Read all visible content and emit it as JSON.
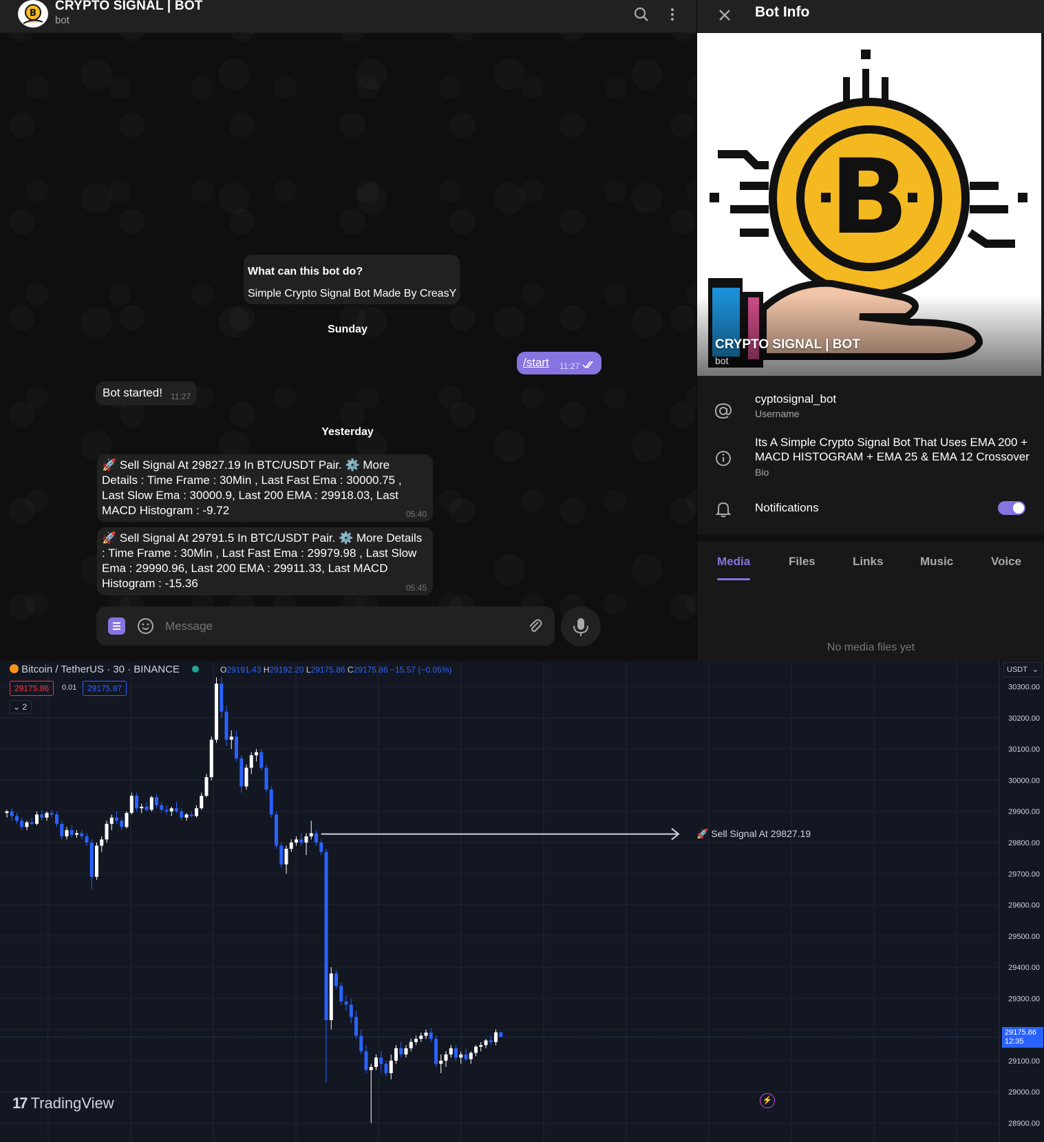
{
  "telegram": {
    "chat_header": {
      "title": "CRYPTO SIGNAL | BOT",
      "subtitle": "bot"
    },
    "messages": {
      "intro_title": "What can this bot do?",
      "intro_text": "Simple Crypto Signal Bot Made By CreasY",
      "date_1": "Sunday",
      "start_text": "/start",
      "start_time": "11:27",
      "bot_started": "Bot started!",
      "bot_started_time": "11:27",
      "date_2": "Yesterday",
      "signal_1": "🚀 Sell Signal At 29827.19 In BTC/USDT Pair. ⚙️ More Details : Time Frame : 30Min , Last Fast Ema : 30000.75 , Last Slow Ema : 30000.9, Last 200 EMA : 29918.03, Last MACD Histogram : -9.72",
      "signal_1_time": "05:40",
      "signal_2": "🚀 Sell Signal At 29791.5 In BTC/USDT Pair. ⚙️ More Details : Time Frame : 30Min , Last Fast Ema : 29979.98 , Last Slow Ema : 29990.96, Last 200 EMA : 29911.33, Last MACD Histogram : -15.36",
      "signal_2_time": "05:45"
    },
    "composer": {
      "placeholder": "Message"
    },
    "side_panel": {
      "title": "Bot Info",
      "photo_name": "CRYPTO SIGNAL | BOT",
      "photo_sub": "bot",
      "username": "cyptosignal_bot",
      "username_label": "Username",
      "bio": "Its A Simple Crypto Signal Bot That Uses EMA 200 + MACD HISTOGRAM + EMA 25 & EMA 12 Crossover",
      "bio_label": "Bio",
      "notifications": "Notifications",
      "notifications_on": true,
      "tabs": [
        "Media",
        "Files",
        "Links",
        "Music",
        "Voice"
      ],
      "active_tab": "Media",
      "empty_text": "No media files yet"
    },
    "colors": {
      "accent": "#8774e1",
      "bubble": "#212121"
    }
  },
  "tradingview": {
    "symbol": "Bitcoin / TetherUS · 30 · BINANCE",
    "ohlc": {
      "o": "29191.43",
      "h": "29192.20",
      "l": "29175.86",
      "c": "29175.86",
      "change": "−15.57 (−0.05%)"
    },
    "sell_price": "29175.86",
    "spread": "0.01",
    "buy_price": "29175.87",
    "indicators_count": "2",
    "currency": "USDT",
    "last_price": "29175.86",
    "countdown": "12:35",
    "annotation": "🚀 Sell Signal At 29827.19",
    "logo": "TradingView",
    "colors": {
      "up": "#ffffff",
      "down": "#2962ff",
      "grid": "#1f2433"
    }
  },
  "chart_data": {
    "type": "candlestick",
    "y_ticks": [
      "30300.00",
      "30200.00",
      "30100.00",
      "30000.00",
      "29900.00",
      "29800.00",
      "29700.00",
      "29600.00",
      "29500.00",
      "29400.00",
      "29300.00",
      "29200.00",
      "29100.00",
      "29000.00",
      "28900.00"
    ],
    "ylim": [
      28870,
      30350
    ],
    "annotation_price": 29827.19,
    "ohlc_approx": [
      [
        29895,
        29905,
        29880,
        29900
      ],
      [
        29900,
        29910,
        29870,
        29885
      ],
      [
        29885,
        29895,
        29860,
        29870
      ],
      [
        29870,
        29880,
        29840,
        29850
      ],
      [
        29850,
        29870,
        29840,
        29865
      ],
      [
        29865,
        29880,
        29855,
        29860
      ],
      [
        29860,
        29900,
        29855,
        29890
      ],
      [
        29890,
        29905,
        29870,
        29880
      ],
      [
        29880,
        29900,
        29870,
        29895
      ],
      [
        29895,
        29905,
        29880,
        29890
      ],
      [
        29890,
        29900,
        29850,
        29860
      ],
      [
        29860,
        29870,
        29810,
        29820
      ],
      [
        29820,
        29850,
        29810,
        29840
      ],
      [
        29840,
        29855,
        29815,
        29825
      ],
      [
        29825,
        29840,
        29815,
        29830
      ],
      [
        29830,
        29840,
        29810,
        29820
      ],
      [
        29820,
        29830,
        29790,
        29800
      ],
      [
        29800,
        29810,
        29650,
        29690
      ],
      [
        29690,
        29800,
        29680,
        29790
      ],
      [
        29790,
        29820,
        29770,
        29810
      ],
      [
        29810,
        29870,
        29800,
        29860
      ],
      [
        29860,
        29890,
        29840,
        29880
      ],
      [
        29880,
        29900,
        29860,
        29870
      ],
      [
        29870,
        29880,
        29840,
        29850
      ],
      [
        29850,
        29900,
        29845,
        29895
      ],
      [
        29895,
        29960,
        29890,
        29950
      ],
      [
        29950,
        29960,
        29900,
        29910
      ],
      [
        29910,
        29925,
        29895,
        29915
      ],
      [
        29915,
        29930,
        29900,
        29905
      ],
      [
        29905,
        29950,
        29900,
        29945
      ],
      [
        29945,
        29955,
        29910,
        29920
      ],
      [
        29920,
        29930,
        29895,
        29905
      ],
      [
        29905,
        29920,
        29890,
        29900
      ],
      [
        29900,
        29915,
        29885,
        29910
      ],
      [
        29910,
        29930,
        29895,
        29900
      ],
      [
        29900,
        29910,
        29870,
        29880
      ],
      [
        29880,
        29895,
        29870,
        29890
      ],
      [
        29890,
        29900,
        29880,
        29885
      ],
      [
        29885,
        29920,
        29880,
        29910
      ],
      [
        29910,
        29960,
        29905,
        29950
      ],
      [
        29950,
        30020,
        29945,
        30010
      ],
      [
        30010,
        30140,
        30000,
        30130
      ],
      [
        30130,
        30330,
        30120,
        30310
      ],
      [
        30310,
        30330,
        30200,
        30220
      ],
      [
        30220,
        30240,
        30110,
        30130
      ],
      [
        30130,
        30160,
        30100,
        30140
      ],
      [
        30140,
        30160,
        30060,
        30070
      ],
      [
        30070,
        30080,
        29960,
        29980
      ],
      [
        29980,
        30050,
        29970,
        30040
      ],
      [
        30040,
        30090,
        30020,
        30080
      ],
      [
        30080,
        30100,
        30060,
        30090
      ],
      [
        30090,
        30100,
        30030,
        30040
      ],
      [
        30040,
        30050,
        29960,
        29970
      ],
      [
        29970,
        29980,
        29880,
        29890
      ],
      [
        29890,
        29900,
        29780,
        29790
      ],
      [
        29790,
        29800,
        29720,
        29730
      ],
      [
        29730,
        29790,
        29700,
        29780
      ],
      [
        29780,
        29810,
        29770,
        29800
      ],
      [
        29800,
        29820,
        29790,
        29810
      ],
      [
        29810,
        29830,
        29790,
        29800
      ],
      [
        29800,
        29830,
        29760,
        29820
      ],
      [
        29820,
        29870,
        29810,
        29830
      ],
      [
        29830,
        29840,
        29790,
        29800
      ],
      [
        29800,
        29810,
        29760,
        29770
      ],
      [
        29770,
        29780,
        29030,
        29230
      ],
      [
        29230,
        29400,
        29200,
        29380
      ],
      [
        29380,
        29390,
        29330,
        29340
      ],
      [
        29340,
        29350,
        29280,
        29290
      ],
      [
        29290,
        29310,
        29260,
        29280
      ],
      [
        29280,
        29300,
        29220,
        29240
      ],
      [
        29240,
        29260,
        29170,
        29180
      ],
      [
        29180,
        29200,
        29120,
        29130
      ],
      [
        29130,
        29150,
        29060,
        29070
      ],
      [
        29070,
        29090,
        28900,
        29080
      ],
      [
        29080,
        29120,
        29070,
        29110
      ],
      [
        29110,
        29130,
        29060,
        29090
      ],
      [
        29090,
        29100,
        29050,
        29060
      ],
      [
        29060,
        29120,
        29040,
        29100
      ],
      [
        29100,
        29150,
        29090,
        29140
      ],
      [
        29140,
        29160,
        29110,
        29120
      ],
      [
        29120,
        29150,
        29110,
        29140
      ],
      [
        29140,
        29170,
        29130,
        29160
      ],
      [
        29160,
        29180,
        29150,
        29170
      ],
      [
        29170,
        29190,
        29160,
        29180
      ],
      [
        29180,
        29200,
        29170,
        29190
      ],
      [
        29190,
        29205,
        29160,
        29170
      ],
      [
        29170,
        29180,
        29080,
        29090
      ],
      [
        29090,
        29120,
        29060,
        29100
      ],
      [
        29100,
        29130,
        29080,
        29120
      ],
      [
        29120,
        29150,
        29110,
        29140
      ],
      [
        29140,
        29150,
        29100,
        29110
      ],
      [
        29110,
        29130,
        29090,
        29120
      ],
      [
        29120,
        29140,
        29100,
        29105
      ],
      [
        29105,
        29130,
        29090,
        29125
      ],
      [
        29125,
        29150,
        29115,
        29145
      ],
      [
        29145,
        29160,
        29130,
        29150
      ],
      [
        29150,
        29170,
        29140,
        29165
      ],
      [
        29165,
        29180,
        29150,
        29160
      ],
      [
        29160,
        29200,
        29150,
        29191
      ],
      [
        29191,
        29192,
        29175,
        29176
      ]
    ]
  }
}
